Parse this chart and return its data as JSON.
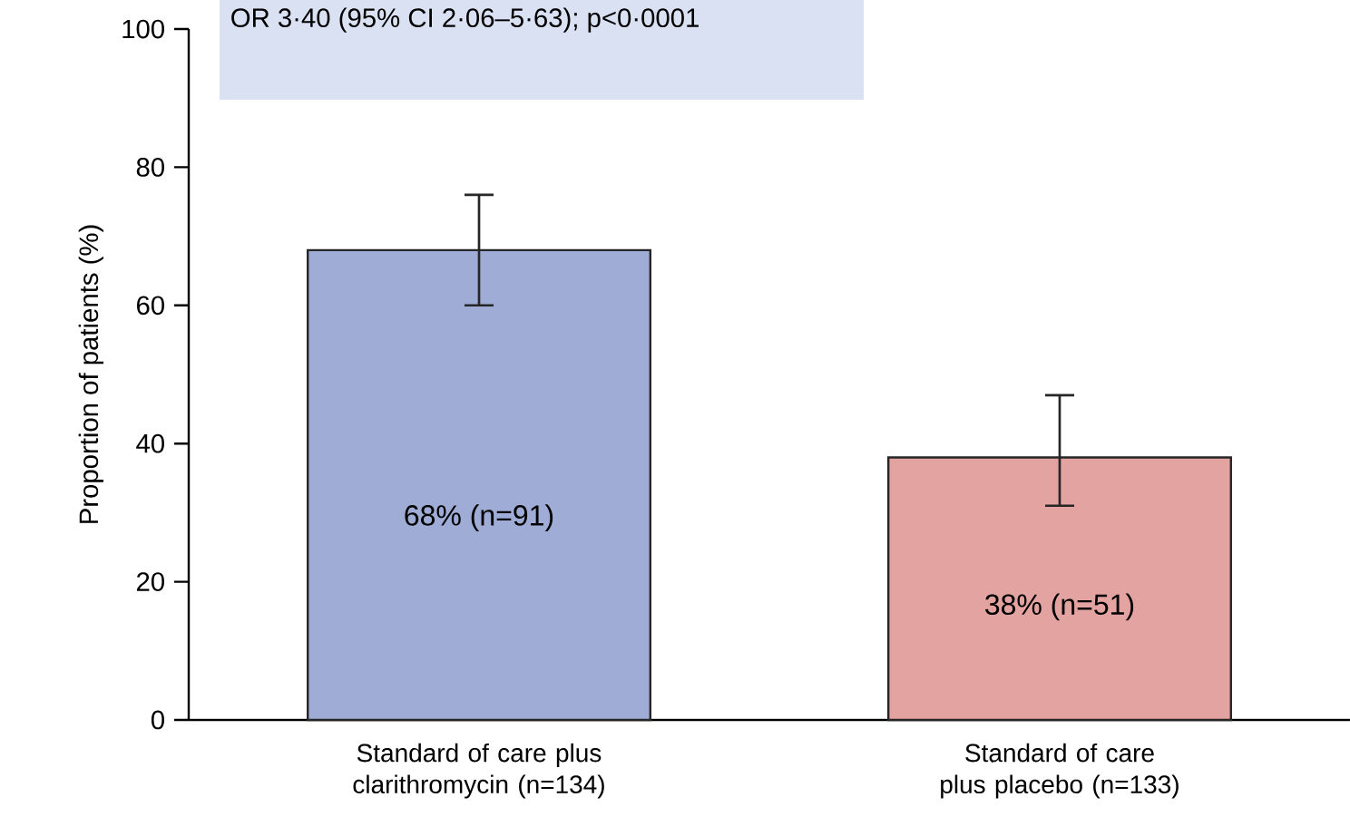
{
  "chart_data": {
    "type": "bar",
    "ylabel": "Proportion of patients (%)",
    "categories": [
      "Standard of care plus clarithromycin (n=134)",
      "Standard of care plus placebo (n=133)"
    ],
    "values": [
      68,
      38
    ],
    "colors": [
      "#9fadd6",
      "#e3a3a0"
    ],
    "errors": [
      [
        60,
        76
      ],
      [
        31,
        47
      ]
    ],
    "value_labels": [
      "68% (n=91)",
      "38% (n=51)"
    ],
    "ylim": [
      0,
      100
    ],
    "yticks": [
      0,
      20,
      40,
      60,
      80,
      100
    ],
    "annotations": [
      "OR 3·40 (95% CI 2·06–5·63); p<0·0001"
    ]
  }
}
